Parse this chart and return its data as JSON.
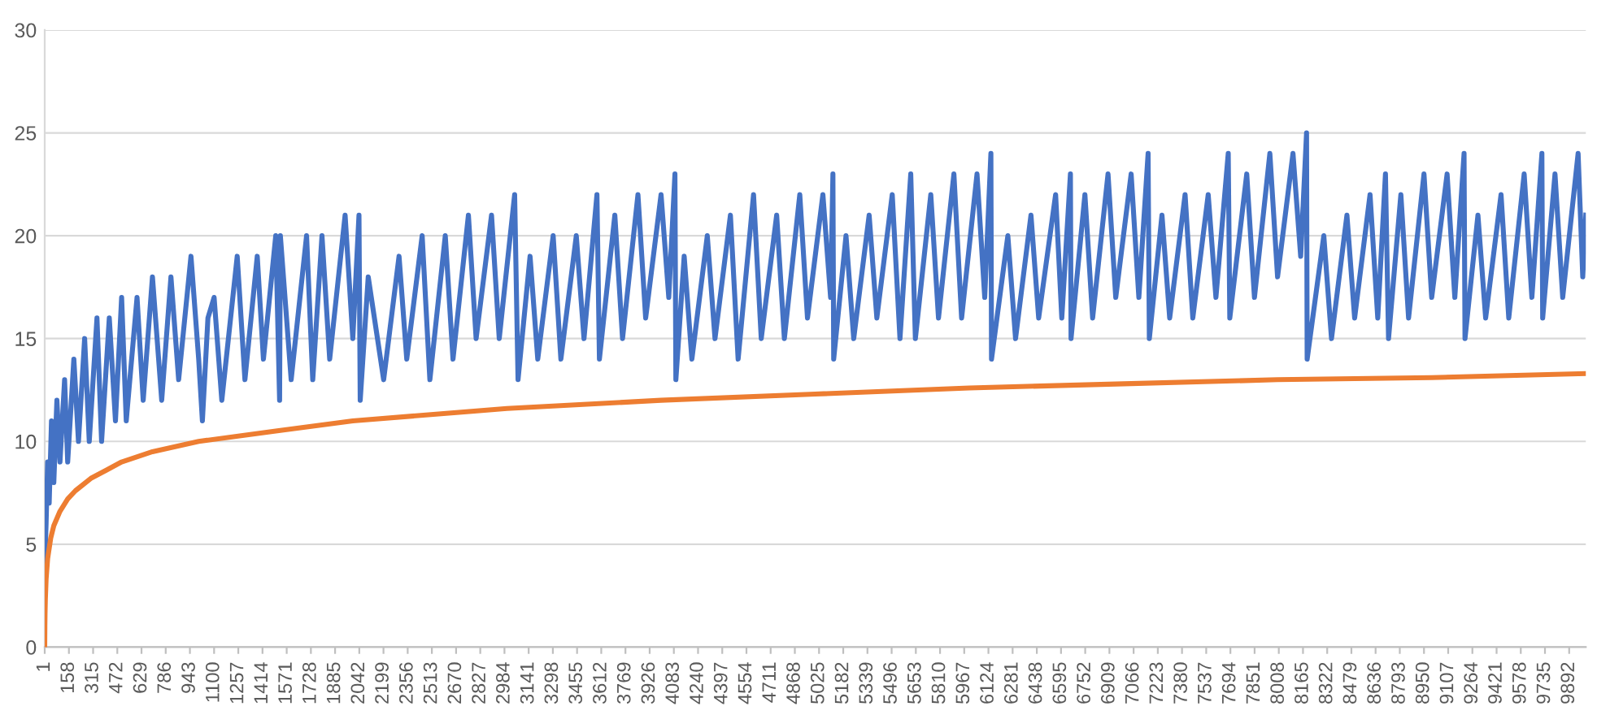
{
  "chart_data": {
    "type": "line",
    "grid": "y",
    "marker": "none",
    "line_style": "solid",
    "xlim": [
      1,
      10000
    ],
    "ylim": [
      0,
      30
    ],
    "yticks": [
      0,
      5,
      10,
      15,
      20,
      25,
      30
    ],
    "xticks": [
      1,
      158,
      315,
      472,
      629,
      786,
      943,
      1100,
      1257,
      1414,
      1571,
      1728,
      1885,
      2042,
      2199,
      2356,
      2513,
      2670,
      2827,
      2984,
      3141,
      3298,
      3455,
      3612,
      3769,
      3926,
      4083,
      4240,
      4397,
      4554,
      4711,
      4868,
      5025,
      5182,
      5339,
      5496,
      5653,
      5810,
      5967,
      6124,
      6281,
      6438,
      6595,
      6752,
      6909,
      7066,
      7223,
      7380,
      7537,
      7694,
      7851,
      8008,
      8165,
      8322,
      8479,
      8636,
      8793,
      8950,
      9107,
      9264,
      9421,
      9578,
      9735,
      9892
    ],
    "series": [
      {
        "color": "#4472c4",
        "x": [
          1,
          10,
          20,
          30,
          45,
          60,
          80,
          100,
          130,
          150,
          190,
          220,
          260,
          290,
          340,
          370,
          420,
          460,
          500,
          530,
          600,
          640,
          700,
          760,
          820,
          870,
          950,
          1000,
          1024,
          1060,
          1100,
          1150,
          1250,
          1300,
          1380,
          1420,
          1500,
          1525,
          1530,
          1600,
          1700,
          1740,
          1800,
          1850,
          1950,
          2000,
          2040,
          2048,
          2100,
          2200,
          2300,
          2350,
          2450,
          2500,
          2600,
          2650,
          2750,
          2800,
          2900,
          2950,
          3050,
          3072,
          3150,
          3200,
          3300,
          3350,
          3450,
          3500,
          3584,
          3600,
          3700,
          3750,
          3850,
          3900,
          4000,
          4050,
          4090,
          4096,
          4150,
          4200,
          4300,
          4350,
          4450,
          4500,
          4600,
          4650,
          4750,
          4800,
          4900,
          4950,
          5050,
          5100,
          5115,
          5120,
          5200,
          5250,
          5350,
          5400,
          5500,
          5550,
          5620,
          5650,
          5750,
          5800,
          5900,
          5950,
          6050,
          6100,
          6140,
          6144,
          6250,
          6300,
          6400,
          6450,
          6560,
          6600,
          6656,
          6660,
          6750,
          6800,
          6900,
          6950,
          7050,
          7100,
          7160,
          7168,
          7250,
          7300,
          7400,
          7450,
          7550,
          7600,
          7680,
          7690,
          7800,
          7850,
          7950,
          8000,
          8100,
          8150,
          8188,
          8192,
          8300,
          8350,
          8450,
          8500,
          8600,
          8650,
          8700,
          8720,
          8800,
          8850,
          8950,
          9000,
          9100,
          9150,
          9210,
          9216,
          9300,
          9350,
          9450,
          9500,
          9600,
          9650,
          9715,
          9720,
          9800,
          9850,
          9950,
          9980,
          10000
        ],
        "values": [
          4,
          6,
          9,
          7,
          11,
          8,
          12,
          9,
          13,
          9,
          14,
          10,
          15,
          10,
          16,
          10,
          16,
          11,
          17,
          11,
          17,
          12,
          18,
          12,
          18,
          13,
          19,
          14,
          11,
          16,
          17,
          12,
          19,
          13,
          19,
          14,
          20,
          12,
          20,
          13,
          20,
          13,
          20,
          14,
          21,
          15,
          21,
          12,
          18,
          13,
          19,
          14,
          20,
          13,
          20,
          14,
          21,
          15,
          21,
          15,
          22,
          13,
          19,
          14,
          20,
          14,
          20,
          15,
          22,
          14,
          21,
          15,
          22,
          16,
          22,
          17,
          23,
          13,
          19,
          14,
          20,
          15,
          21,
          14,
          22,
          15,
          21,
          15,
          22,
          16,
          22,
          17,
          23,
          14,
          20,
          15,
          21,
          16,
          22,
          15,
          23,
          15,
          22,
          16,
          23,
          16,
          23,
          17,
          24,
          14,
          20,
          15,
          21,
          16,
          22,
          16,
          23,
          15,
          22,
          16,
          23,
          17,
          23,
          17,
          24,
          15,
          21,
          16,
          22,
          16,
          22,
          17,
          24,
          16,
          23,
          17,
          24,
          18,
          24,
          19,
          25,
          14,
          20,
          15,
          21,
          16,
          22,
          16,
          23,
          15,
          22,
          16,
          23,
          17,
          23,
          17,
          24,
          15,
          21,
          16,
          22,
          16,
          23,
          17,
          24,
          16,
          23,
          17,
          24,
          18,
          21
        ]
      },
      {
        "color": "#ed7d31",
        "x": [
          1,
          2,
          3,
          5,
          10,
          20,
          40,
          60,
          100,
          150,
          200,
          300,
          400,
          500,
          700,
          1000,
          1500,
          2000,
          3000,
          4000,
          5000,
          6000,
          7000,
          8000,
          9000,
          10000
        ],
        "values": [
          0,
          1,
          1.6,
          2.3,
          3.3,
          4.3,
          5.3,
          5.9,
          6.6,
          7.2,
          7.6,
          8.2,
          8.6,
          9.0,
          9.5,
          10.0,
          10.5,
          11.0,
          11.6,
          12.0,
          12.3,
          12.6,
          12.8,
          13.0,
          13.1,
          13.3
        ]
      }
    ]
  }
}
